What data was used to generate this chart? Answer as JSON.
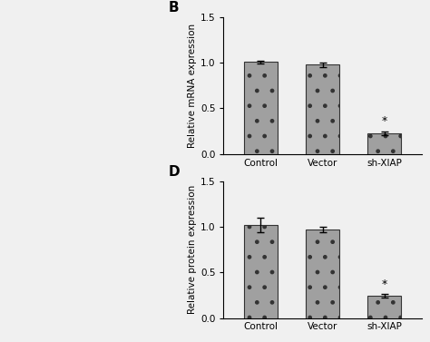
{
  "panel_B": {
    "label": "B",
    "categories": [
      "Control",
      "Vector",
      "sh-XIAP"
    ],
    "values": [
      1.01,
      0.98,
      0.23
    ],
    "errors": [
      0.015,
      0.025,
      0.02
    ],
    "ylabel": "Relative mRNA expression",
    "ylim": [
      0,
      1.5
    ],
    "yticks": [
      0.0,
      0.5,
      1.0,
      1.5
    ],
    "star_idx": 2,
    "bar_color": "#a0a0a0",
    "hatch": ".",
    "edgecolor": "#333333"
  },
  "panel_D": {
    "label": "D",
    "categories": [
      "Control",
      "Vector",
      "sh-XIAP"
    ],
    "values": [
      1.02,
      0.97,
      0.24
    ],
    "errors": [
      0.08,
      0.03,
      0.02
    ],
    "ylabel": "Relative protein expression",
    "ylim": [
      0,
      1.5
    ],
    "yticks": [
      0.0,
      0.5,
      1.0,
      1.5
    ],
    "star_idx": 2,
    "bar_color": "#a0a0a0",
    "hatch": ".",
    "edgecolor": "#333333"
  },
  "background_color": "#ffffff",
  "figure_facecolor": "#f0f0f0"
}
